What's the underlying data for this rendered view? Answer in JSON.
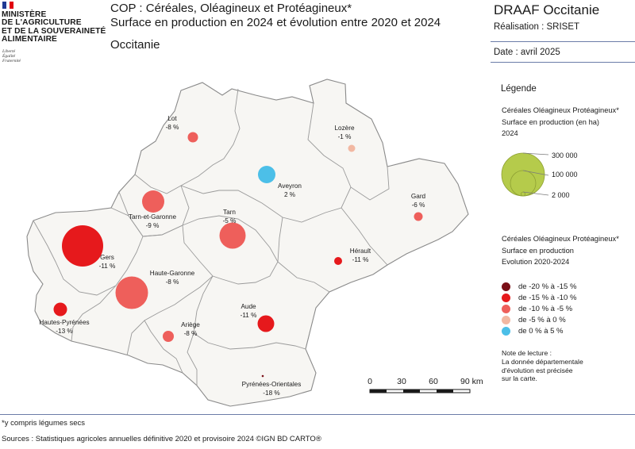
{
  "header": {
    "ministry_lines": [
      "MINISTÈRE",
      "DE L'AGRICULTURE",
      "ET DE LA SOUVERAINETÉ",
      "ALIMENTAIRE"
    ],
    "motto_lines": [
      "Liberté",
      "Égalité",
      "Fraternité"
    ],
    "title_line1": "COP : Céréales, Oléagineux et Protéagineux*",
    "title_line2": "Surface en production en 2024 et évolution entre 2020 et 2024",
    "region": "Occitanie",
    "org": "DRAAF Occitanie",
    "realisation": "Réalisation : SRISET",
    "date": "Date : avril 2025"
  },
  "legend": {
    "title": "Légende",
    "size_title_lines": [
      "Céréales Oléagineux Protéagineux*",
      "Surface en production (en ha)",
      "2024"
    ],
    "size_labels": [
      "300 000",
      "100 000",
      "2 000"
    ],
    "color_title_lines": [
      "Céréales Oléagineux Protéagineux*",
      "Surface en production",
      "Evolution 2020-2024"
    ],
    "classes": [
      {
        "label": "de -20 % à -15 %",
        "color": "#7a0f17"
      },
      {
        "label": "de -15 % à -10 %",
        "color": "#e6191c"
      },
      {
        "label": "de -10 % à -5 %",
        "color": "#ee5f5b"
      },
      {
        "label": "de -5 % à 0 %",
        "color": "#f2b8a2"
      },
      {
        "label": "de 0 % à 5 %",
        "color": "#4cbfe8"
      }
    ],
    "note_lines": [
      "Note de lecture :",
      "La donnée départementale",
      "d'évolution est précisée",
      "sur la carte."
    ]
  },
  "scale": {
    "ticks": [
      "0",
      "30",
      "60",
      "90 km"
    ]
  },
  "departments": [
    {
      "name": "Lot",
      "change": "-8 %",
      "color": "#ee5f5b"
    },
    {
      "name": "Lozère",
      "change": "-1 %",
      "color": "#f2b8a2"
    },
    {
      "name": "Aveyron",
      "change": "2 %",
      "color": "#4cbfe8"
    },
    {
      "name": "Gard",
      "change": "-6 %",
      "color": "#ee5f5b"
    },
    {
      "name": "Tarn-et-Garonne",
      "change": "-9 %",
      "color": "#ee5f5b"
    },
    {
      "name": "Tarn",
      "change": "-5 %",
      "color": "#ee5f5b"
    },
    {
      "name": "Gers",
      "change": "-11 %",
      "color": "#e6191c"
    },
    {
      "name": "Hérault",
      "change": "-11 %",
      "color": "#e6191c"
    },
    {
      "name": "Haute-Garonne",
      "change": "-8 %",
      "color": "#ee5f5b"
    },
    {
      "name": "Aude",
      "change": "-11 %",
      "color": "#e6191c"
    },
    {
      "name": "Hautes-Pyrénées",
      "change": "-13 %",
      "color": "#e6191c"
    },
    {
      "name": "Ariège",
      "change": "-8 %",
      "color": "#ee5f5b"
    },
    {
      "name": "Pyrénées-Orientales",
      "change": "-18 %",
      "color": "#7a0f17"
    }
  ],
  "footnote": "*y compris légumes secs",
  "sources": "Sources : Statistiques agricoles annuelles définitive 2020 et provisoire 2024 ©IGN BD CARTO®"
}
